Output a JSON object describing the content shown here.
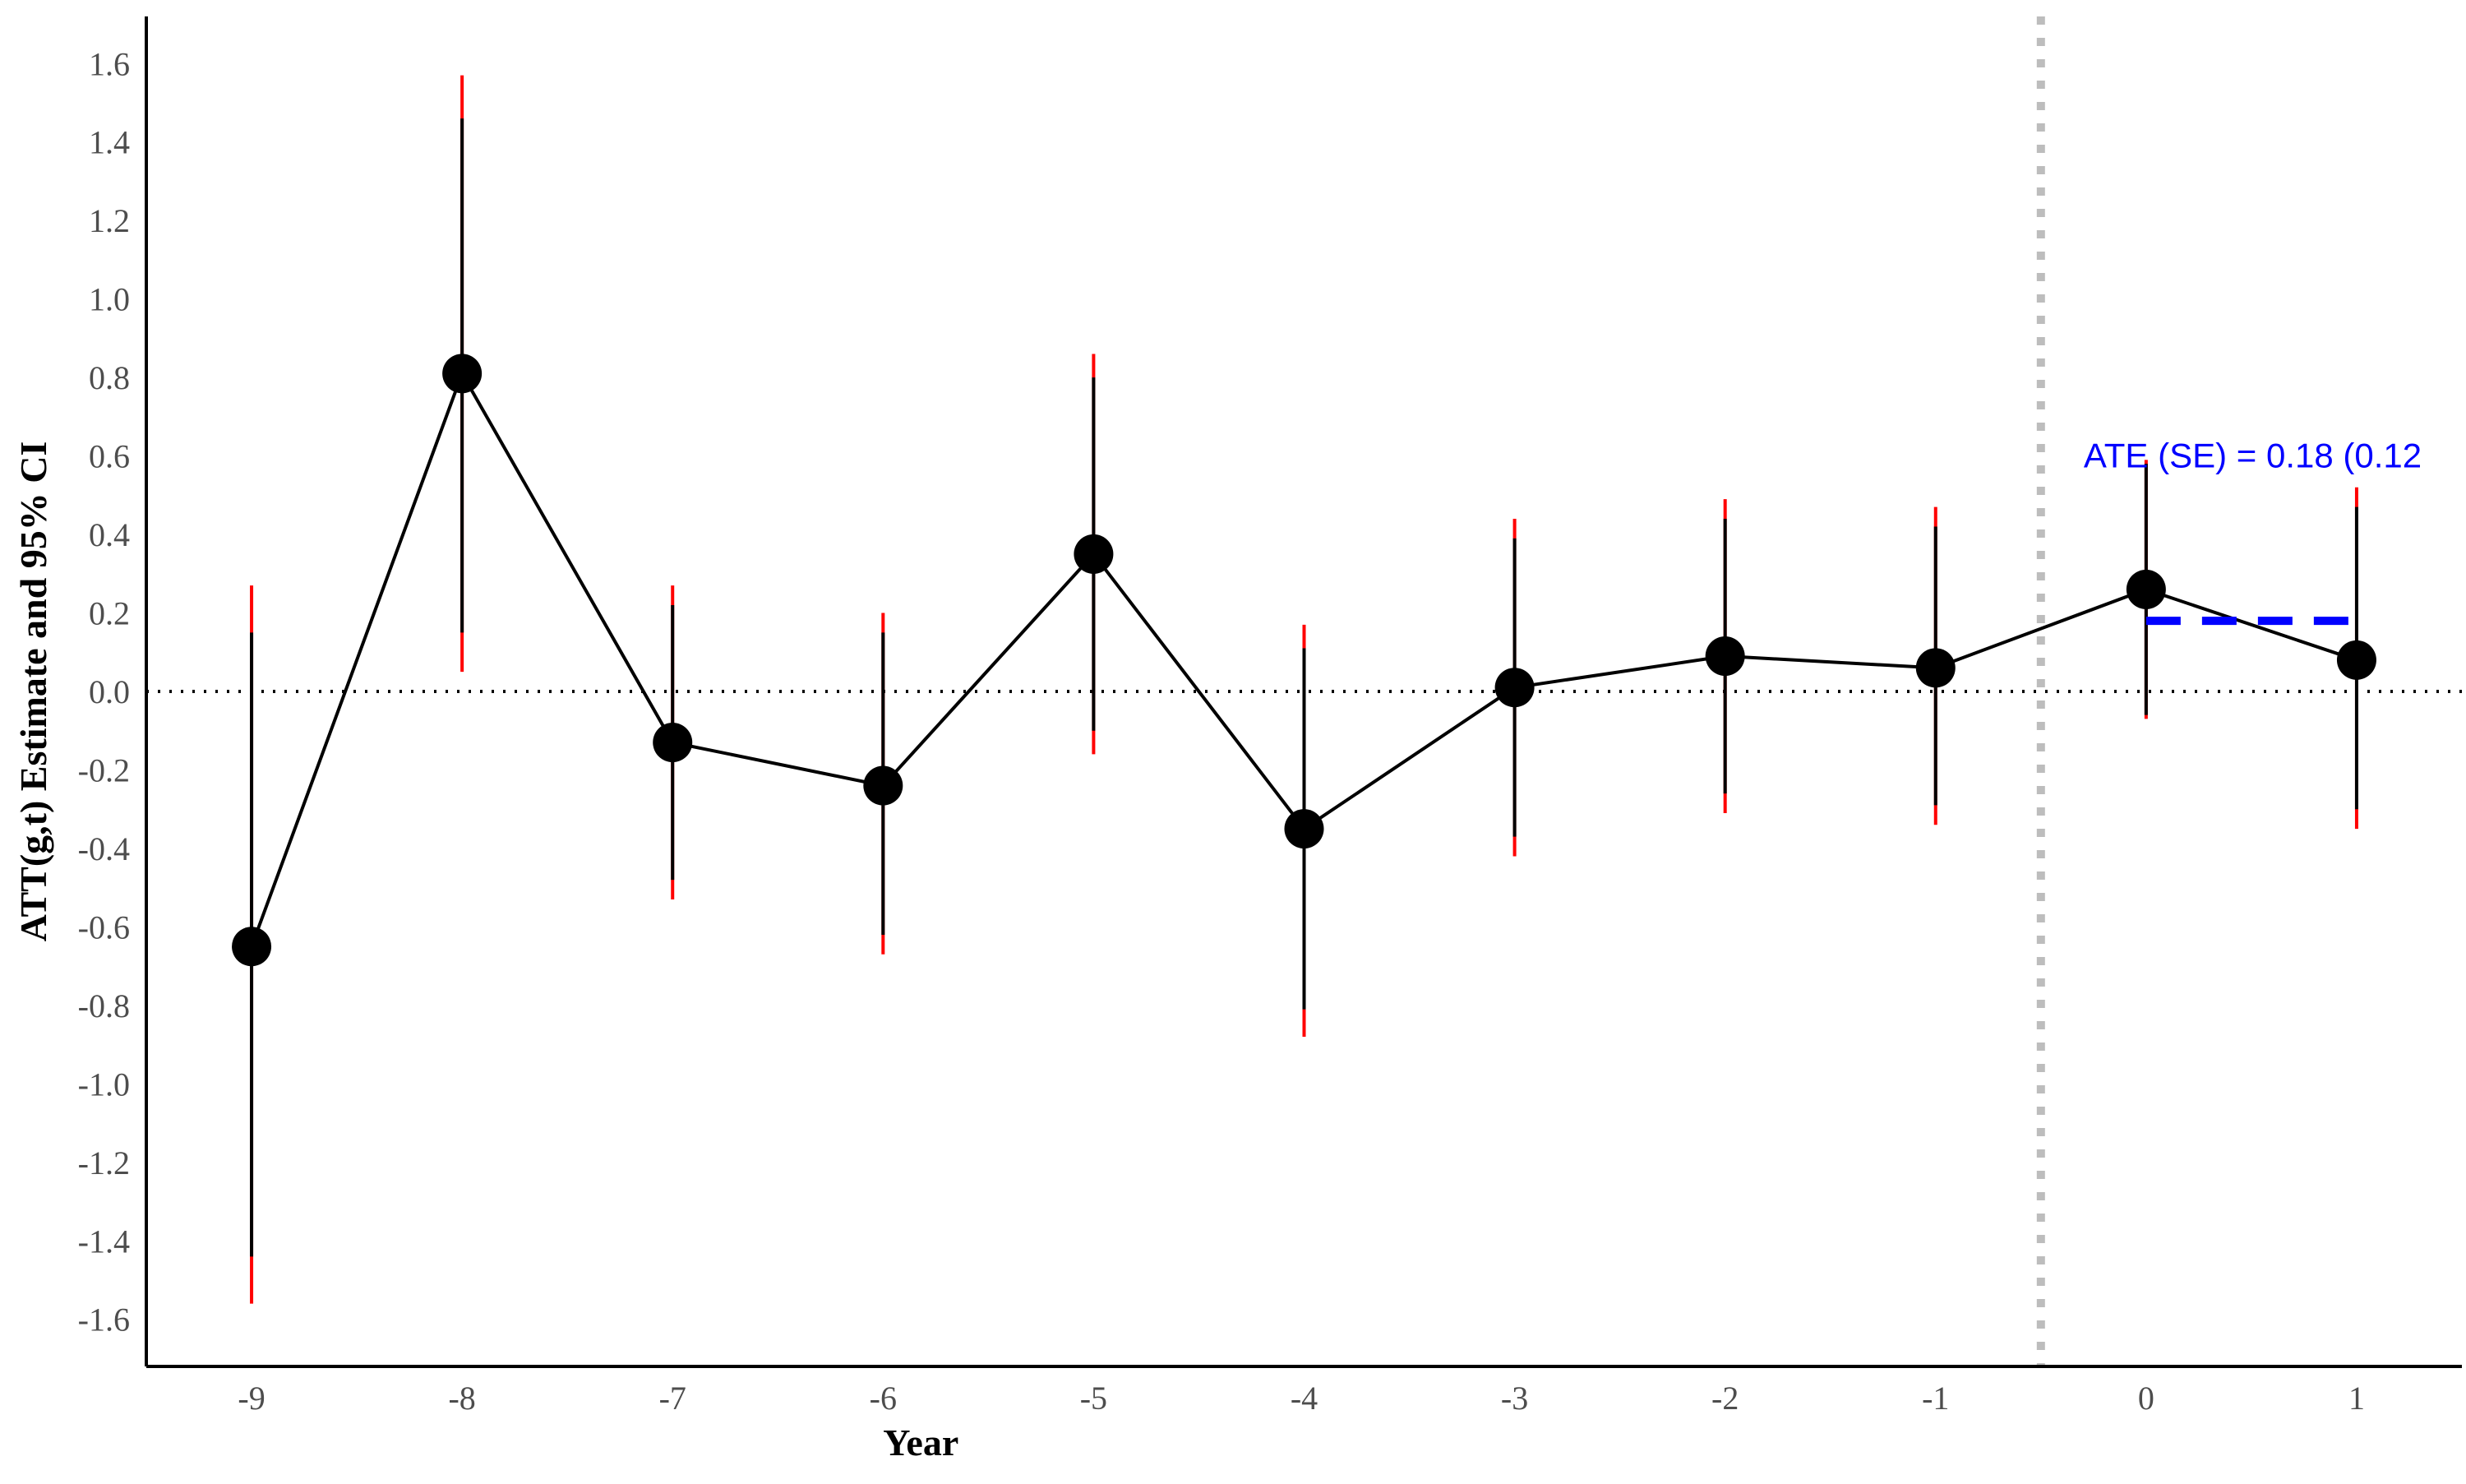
{
  "chart_data": {
    "type": "line",
    "title": "",
    "xlabel": "Year",
    "ylabel": "ATT(g,t) Estimate and 95% CI",
    "x": [
      -9,
      -8,
      -7,
      -6,
      -5,
      -4,
      -3,
      -2,
      -1,
      0,
      1
    ],
    "series": [
      {
        "values": [
          -0.65,
          0.81,
          -0.13,
          -0.24,
          0.35,
          -0.35,
          0.01,
          0.09,
          0.06,
          0.26,
          0.08
        ],
        "ci_lower_inner": [
          -1.44,
          0.15,
          -0.48,
          -0.62,
          -0.1,
          -0.81,
          -0.37,
          -0.26,
          -0.29,
          -0.06,
          -0.3
        ],
        "ci_upper_inner": [
          0.15,
          1.46,
          0.22,
          0.15,
          0.8,
          0.11,
          0.39,
          0.44,
          0.42,
          0.58,
          0.47
        ],
        "ci_lower_outer": [
          -1.56,
          0.05,
          -0.53,
          -0.67,
          -0.16,
          -0.88,
          -0.42,
          -0.31,
          -0.34,
          -0.07,
          -0.35
        ],
        "ci_upper_outer": [
          0.27,
          1.57,
          0.27,
          0.2,
          0.86,
          0.17,
          0.44,
          0.49,
          0.47,
          0.59,
          0.52
        ]
      }
    ],
    "ate": {
      "value": 0.18,
      "x_start": 0,
      "x_end": 1,
      "label": "ATE (SE) = 0.18 (0.12"
    },
    "reference_lines": {
      "zero_line_y": 0.0,
      "treatment_line_x": -0.5
    },
    "xlim": [
      -9.5,
      1.5
    ],
    "ylim": [
      -1.72,
      1.72
    ],
    "xticks": [
      -9,
      -8,
      -7,
      -6,
      -5,
      -4,
      -3,
      -2,
      -1,
      0,
      1
    ],
    "xtick_labels": [
      "-9",
      "-8",
      "-7",
      "-6",
      "-5",
      "-4",
      "-3",
      "-2",
      "-1",
      "0",
      "1"
    ],
    "yticks": [
      -1.6,
      -1.4,
      -1.2,
      -1.0,
      -0.8,
      -0.6,
      -0.4,
      -0.2,
      0.0,
      0.2,
      0.4,
      0.6,
      0.8,
      1.0,
      1.2,
      1.4,
      1.6
    ],
    "ytick_labels": [
      "-1.6",
      "-1.4",
      "-1.2",
      "-1.0",
      "-0.8",
      "-0.6",
      "-0.4",
      "-0.2",
      "0.0",
      "0.2",
      "0.4",
      "0.6",
      "0.8",
      "1.0",
      "1.2",
      "1.4",
      "1.6"
    ],
    "grid": false,
    "colors": {
      "line": "#000000",
      "point": "#000000",
      "ci_outer": "#ff0000",
      "ci_inner": "#000000",
      "ate": "#0000ff",
      "treatment_line": "#bdbdbd",
      "zero_line": "#000000"
    }
  }
}
